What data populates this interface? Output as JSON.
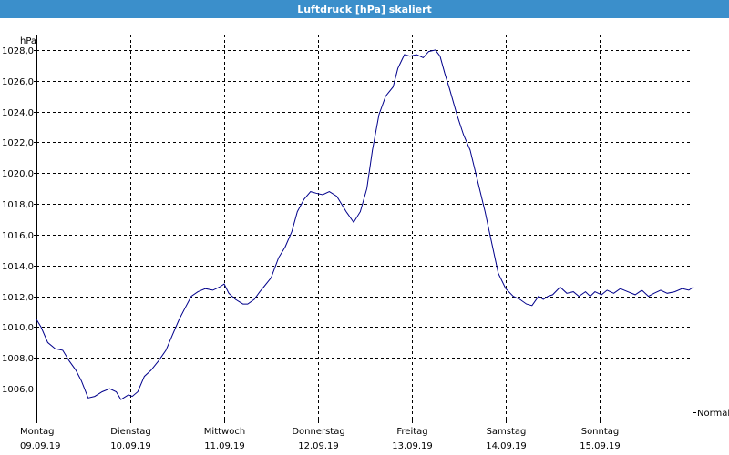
{
  "window": {
    "title": "Luftdruck [hPa] skaliert"
  },
  "legend": {
    "label": "Normal"
  },
  "chart_data": {
    "type": "line",
    "title": "Luftdruck [hPa] skaliert",
    "ylabel": "hPa",
    "xlabel": "",
    "ylim": [
      1004.0,
      1029.0
    ],
    "xlim": [
      0,
      7
    ],
    "grid": true,
    "y_ticks": [
      "1006,0",
      "1008,0",
      "1010,0",
      "1012,0",
      "1014,0",
      "1016,0",
      "1018,0",
      "1020,0",
      "1022,0",
      "1024,0",
      "1026,0",
      "1028,0"
    ],
    "x_ticks": [
      {
        "day": "Montag",
        "date": "09.09.19"
      },
      {
        "day": "Dienstag",
        "date": "10.09.19"
      },
      {
        "day": "Mittwoch",
        "date": "11.09.19"
      },
      {
        "day": "Donnerstag",
        "date": "12.09.19"
      },
      {
        "day": "Freitag",
        "date": "13.09.19"
      },
      {
        "day": "Samstag",
        "date": "14.09.19"
      },
      {
        "day": "Sonntag",
        "date": "15.09.19"
      }
    ],
    "series": [
      {
        "name": "Normal",
        "color": "#00008b",
        "x": [
          0.0,
          0.05,
          0.12,
          0.2,
          0.28,
          0.35,
          0.42,
          0.48,
          0.55,
          0.62,
          0.7,
          0.78,
          0.85,
          0.9,
          0.98,
          1.02,
          1.08,
          1.15,
          1.22,
          1.3,
          1.38,
          1.45,
          1.52,
          1.58,
          1.65,
          1.72,
          1.8,
          1.88,
          1.95,
          2.0,
          2.05,
          2.12,
          2.2,
          2.25,
          2.32,
          2.38,
          2.42,
          2.5,
          2.58,
          2.65,
          2.72,
          2.78,
          2.85,
          2.92,
          2.98,
          3.05,
          3.12,
          3.2,
          3.3,
          3.38,
          3.45,
          3.52,
          3.58,
          3.65,
          3.72,
          3.8,
          3.85,
          3.92,
          3.98,
          4.05,
          4.12,
          4.18,
          4.25,
          4.3,
          4.35,
          4.4,
          4.48,
          4.55,
          4.62,
          4.7,
          4.78,
          4.85,
          4.92,
          5.0,
          5.08,
          5.15,
          5.22,
          5.28,
          5.35,
          5.4,
          5.45,
          5.5,
          5.58,
          5.65,
          5.72,
          5.78,
          5.85,
          5.9,
          5.95,
          6.02,
          6.08,
          6.15,
          6.22,
          6.3,
          6.38,
          6.45,
          6.52,
          6.58,
          6.65,
          6.72,
          6.8,
          6.88,
          6.95,
          7.0
        ],
        "values": [
          1010.5,
          1010.0,
          1009.0,
          1008.6,
          1008.5,
          1007.8,
          1007.2,
          1006.5,
          1005.4,
          1005.5,
          1005.8,
          1006.0,
          1005.8,
          1005.3,
          1005.6,
          1005.5,
          1005.8,
          1006.8,
          1007.2,
          1007.8,
          1008.5,
          1009.5,
          1010.5,
          1011.2,
          1012.0,
          1012.3,
          1012.5,
          1012.4,
          1012.6,
          1012.8,
          1012.2,
          1011.8,
          1011.5,
          1011.5,
          1011.8,
          1012.3,
          1012.6,
          1013.2,
          1014.5,
          1015.2,
          1016.2,
          1017.5,
          1018.3,
          1018.8,
          1018.7,
          1018.6,
          1018.8,
          1018.5,
          1017.5,
          1016.8,
          1017.5,
          1019.0,
          1021.5,
          1023.8,
          1025.0,
          1025.6,
          1026.8,
          1027.7,
          1027.6,
          1027.7,
          1027.5,
          1027.9,
          1028.0,
          1027.6,
          1026.5,
          1025.5,
          1023.8,
          1022.5,
          1021.5,
          1019.5,
          1017.5,
          1015.5,
          1013.5,
          1012.5,
          1012.0,
          1011.8,
          1011.5,
          1011.4,
          1012.0,
          1011.8,
          1012.0,
          1012.1,
          1012.6,
          1012.2,
          1012.3,
          1012.0,
          1012.3,
          1012.0,
          1012.3,
          1012.1,
          1012.4,
          1012.2,
          1012.5,
          1012.3,
          1012.1,
          1012.4,
          1012.0,
          1012.2,
          1012.4,
          1012.2,
          1012.3,
          1012.5,
          1012.4,
          1012.6
        ]
      }
    ]
  }
}
